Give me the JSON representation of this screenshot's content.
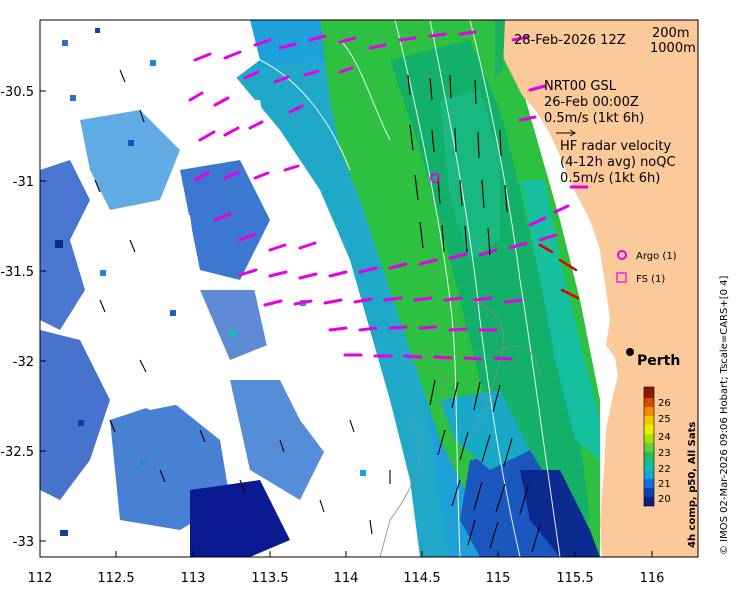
{
  "map": {
    "date_label": "28-Feb-2026 12Z",
    "isobath_labels": [
      "200m",
      "1000m"
    ],
    "gsl_lines": [
      "NRT00 GSL",
      "26-Feb 00:00Z",
      "0.5m/s (1kt 6h)"
    ],
    "radar_lines": [
      "HF radar velocity",
      "(4-12h avg) noQC",
      "0.5m/s (1kt 6h)"
    ],
    "legend": [
      {
        "symbol": "circle",
        "label": "Argo (1)",
        "color": "#e600e6"
      },
      {
        "symbol": "square",
        "label": "FS (1)",
        "color": "#e600e6"
      }
    ],
    "city": "Perth",
    "credit": "© IMOS 02-Mar-2026 09:06 Hobart; Tscale=CARS+[0 4]",
    "x_ticks": [
      "112",
      "112.5",
      "113",
      "113.5",
      "114",
      "114.5",
      "115",
      "115.5",
      "116"
    ],
    "y_ticks": [
      "-30.5",
      "-31",
      "-31.5",
      "-32",
      "-32.5",
      "-33"
    ],
    "colorbar": {
      "title": "4h comp, p50, All Sats",
      "ticks": [
        "26",
        "25",
        "24",
        "23",
        "22",
        "21",
        "20"
      ],
      "colors": [
        "#8b1a00",
        "#d24b00",
        "#f08a00",
        "#f2c800",
        "#e8f000",
        "#a8e000",
        "#5fd040",
        "#1fc060",
        "#10c0a0",
        "#10a8d8",
        "#1070e0",
        "#1040b0",
        "#0a2080"
      ]
    },
    "colors": {
      "land": "#fbc99a",
      "radar_arrow": "#e600e6",
      "gsl_arrow": "#000000",
      "glider_track": "#dd0000"
    }
  }
}
